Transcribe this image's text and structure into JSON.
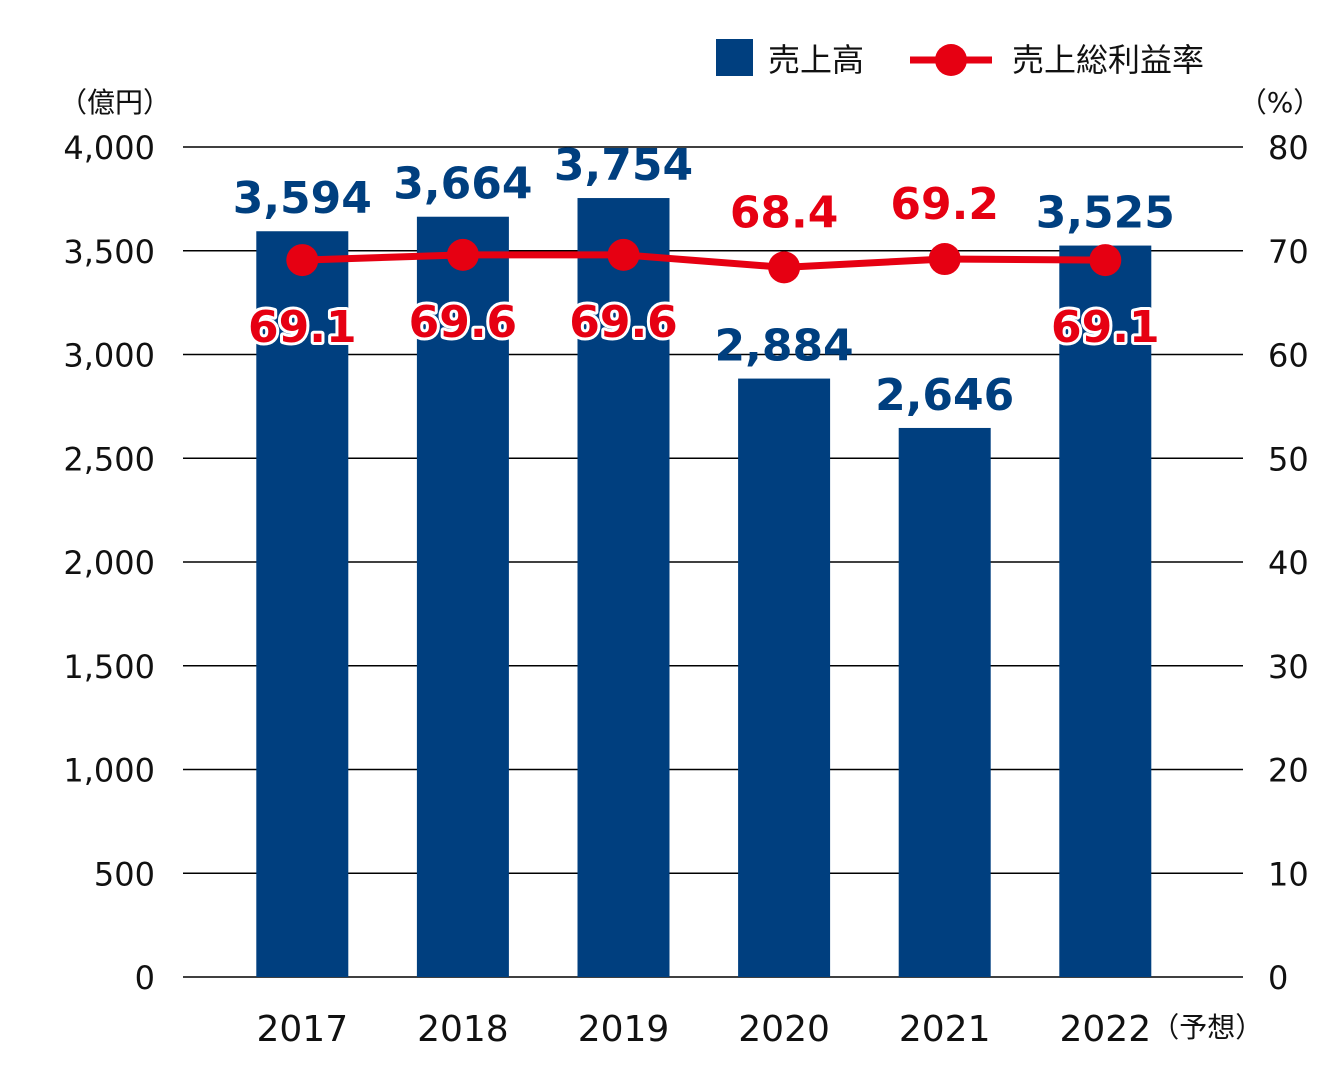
{
  "chart_data": {
    "type": "bar",
    "categories": [
      "2017",
      "2018",
      "2019",
      "2020",
      "2021",
      "2022"
    ],
    "category_suffixes": [
      "",
      "",
      "",
      "",
      "",
      "（予想）"
    ],
    "series": [
      {
        "name": "売上高",
        "kind": "bar",
        "axis": "left",
        "values": [
          3594,
          3664,
          3754,
          2884,
          2646,
          3525
        ],
        "labels": [
          "3,594",
          "3,664",
          "3,754",
          "2,884",
          "2,646",
          "3,525"
        ],
        "color": "#003f7f"
      },
      {
        "name": "売上総利益率",
        "kind": "line",
        "axis": "right",
        "values": [
          69.1,
          69.6,
          69.6,
          68.4,
          69.2,
          69.1
        ],
        "labels": [
          "69.1",
          "69.6",
          "69.6",
          "68.4",
          "69.2",
          "69.1"
        ],
        "label_position": [
          "below",
          "below",
          "below",
          "above",
          "above",
          "below"
        ],
        "color": "#e60012"
      }
    ],
    "y_left": {
      "unit": "（億円）",
      "range": [
        0,
        4000
      ],
      "ticks": [
        0,
        500,
        1000,
        1500,
        2000,
        2500,
        3000,
        3500,
        4000
      ],
      "tick_labels": [
        "0",
        "500",
        "1,000",
        "1,500",
        "2,000",
        "2,500",
        "3,000",
        "3,500",
        "4,000"
      ]
    },
    "y_right": {
      "unit": "（%）",
      "range": [
        0,
        80
      ],
      "ticks": [
        0,
        10,
        20,
        30,
        40,
        50,
        60,
        70,
        80
      ],
      "tick_labels": [
        "0",
        "10",
        "20",
        "30",
        "40",
        "50",
        "60",
        "70",
        "80"
      ]
    },
    "grid": true,
    "legend": "top-right"
  }
}
